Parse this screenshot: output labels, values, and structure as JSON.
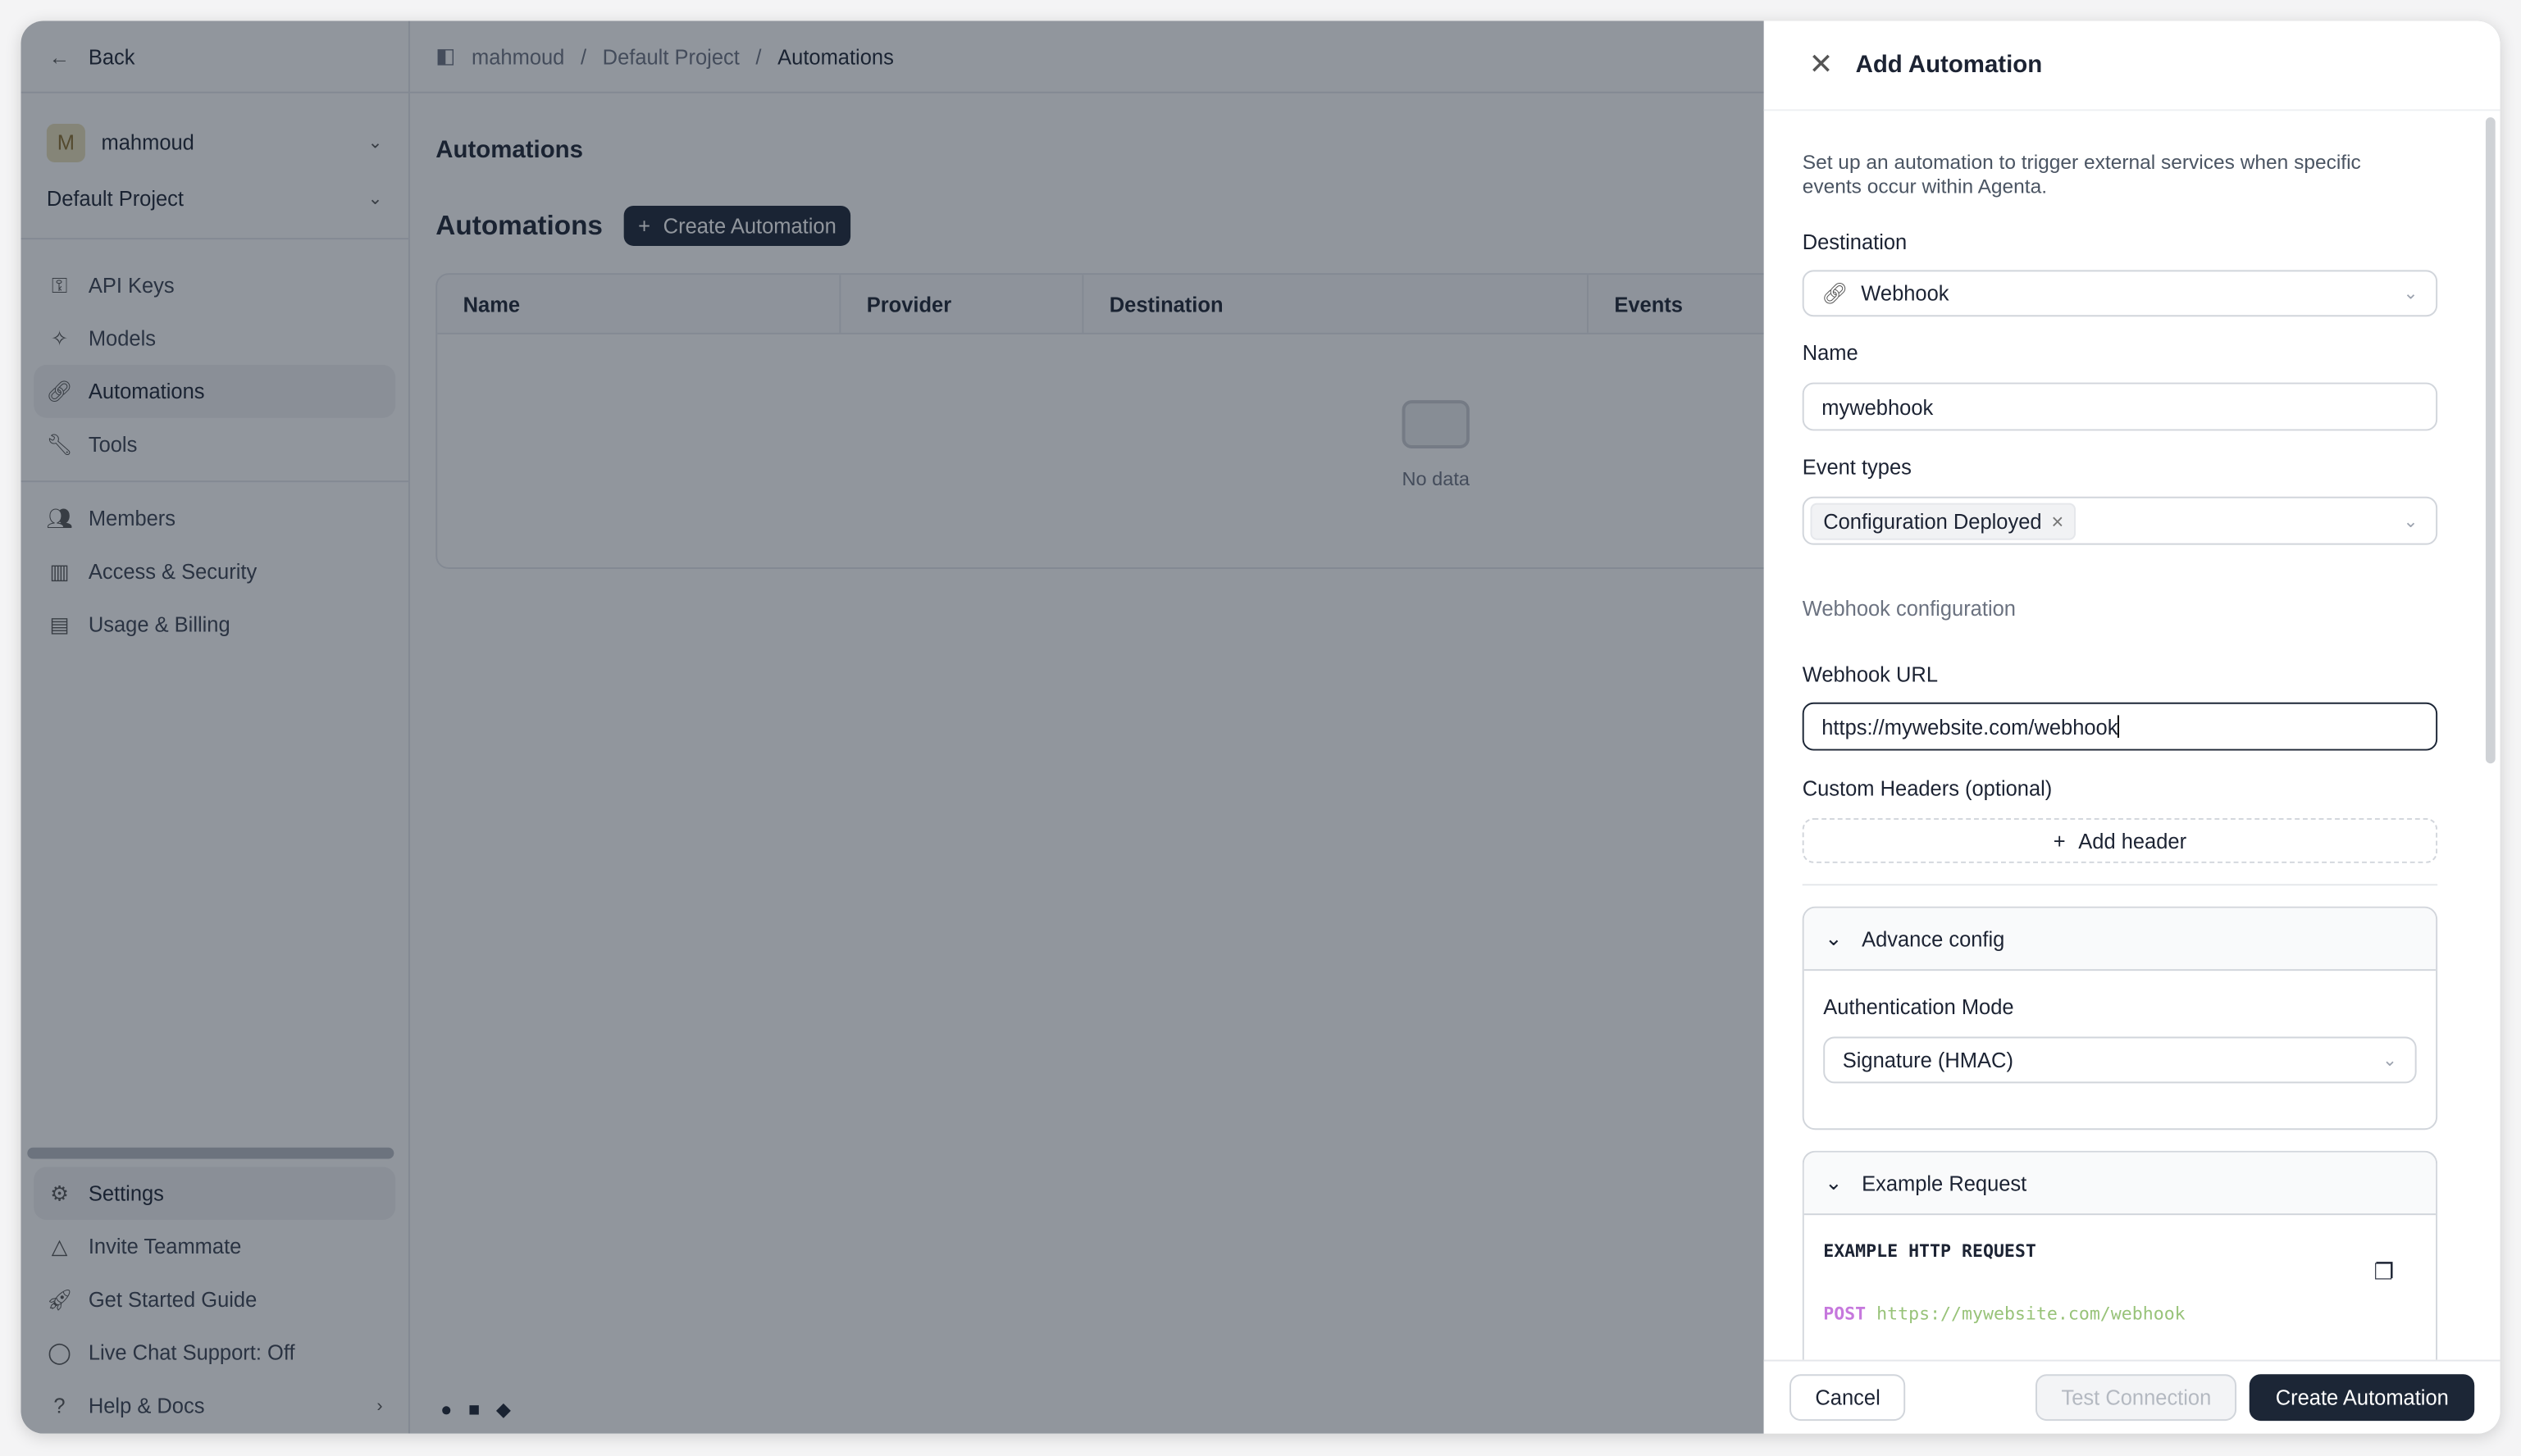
{
  "sidebar": {
    "back": "Back",
    "workspace": "mahmoud",
    "avatar_letter": "M",
    "project": "Default Project",
    "items": [
      {
        "label": "API Keys",
        "icon": "key-icon"
      },
      {
        "label": "Models",
        "icon": "sparkle-icon"
      },
      {
        "label": "Automations",
        "icon": "link-icon"
      },
      {
        "label": "Tools",
        "icon": "wrench-icon"
      },
      {
        "label": "Members",
        "icon": "users-icon"
      },
      {
        "label": "Access & Security",
        "icon": "building-icon"
      },
      {
        "label": "Usage & Billing",
        "icon": "receipt-icon"
      }
    ],
    "bottom": [
      {
        "label": "Settings",
        "icon": "gear-icon"
      },
      {
        "label": "Invite Teammate",
        "icon": "triangle-icon"
      },
      {
        "label": "Get Started Guide",
        "icon": "rocket-icon"
      },
      {
        "label": "Live Chat Support: Off",
        "icon": "chat-icon"
      },
      {
        "label": "Help & Docs",
        "icon": "help-icon"
      }
    ]
  },
  "breadcrumb": {
    "workspace": "mahmoud",
    "project": "Default Project",
    "current": "Automations"
  },
  "main": {
    "page_title": "Automations",
    "section_title": "Automations",
    "create_button": "Create Automation",
    "columns": [
      "Name",
      "Provider",
      "Destination",
      "Events"
    ],
    "empty": "No data"
  },
  "drawer": {
    "title": "Add Automation",
    "description": "Set up an automation to trigger external services when specific events occur within Agenta.",
    "destination_label": "Destination",
    "destination_value": "Webhook",
    "name_label": "Name",
    "name_value": "mywebhook",
    "event_types_label": "Event types",
    "event_tag": "Configuration Deployed",
    "webhook_section": "Webhook configuration",
    "url_label": "Webhook URL",
    "url_value": "https://mywebsite.com/webhook",
    "headers_label": "Custom Headers (optional)",
    "add_header": "Add header",
    "advance_title": "Advance config",
    "auth_label": "Authentication Mode",
    "auth_value": "Signature (HMAC)",
    "example_title": "Example Request",
    "example_heading": "EXAMPLE HTTP REQUEST",
    "method": "POST",
    "example_url": "https://mywebsite.com/webhook",
    "cancel": "Cancel",
    "test": "Test Connection",
    "create": "Create Automation"
  },
  "colors": {
    "primary": "#1c2636",
    "method": "#c678dd",
    "url": "#98c379"
  }
}
